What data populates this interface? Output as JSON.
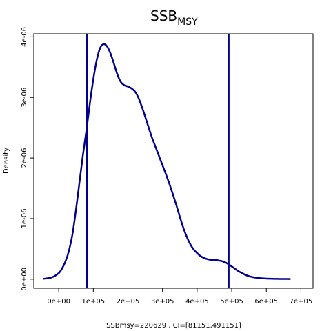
{
  "chart_data": {
    "type": "line",
    "title": "SSB",
    "title_subscript": "MSY",
    "xlabel": "SSBmsy=220629 , CI=[81151,491151]",
    "ylabel": "Density",
    "xlim": [
      -72000,
      735000
    ],
    "ylim": [
      -1.5e-07,
      4.05e-06
    ],
    "x_ticks": [
      0,
      100000,
      200000,
      300000,
      400000,
      500000,
      600000,
      700000
    ],
    "x_tick_labels": [
      "0e+00",
      "1e+05",
      "2e+05",
      "3e+05",
      "4e+05",
      "5e+05",
      "6e+05",
      "7e+05"
    ],
    "y_ticks": [
      0,
      1e-06,
      2e-06,
      3e-06,
      4e-06
    ],
    "y_tick_labels": [
      "0e+00",
      "1e-06",
      "2e-06",
      "3e-06",
      "4e-06"
    ],
    "line_color": "#00008B",
    "series": [
      {
        "x": [
          -45000,
          -20000,
          0,
          10000,
          20000,
          30000,
          40000,
          50000,
          60000,
          70000,
          80000,
          90000,
          100000,
          110000,
          120000,
          130000,
          140000,
          150000,
          160000,
          170000,
          180000,
          190000,
          200000,
          210000,
          220000,
          230000,
          240000,
          250000,
          260000,
          270000,
          280000,
          290000,
          300000,
          310000,
          320000,
          330000,
          340000,
          350000,
          360000,
          370000,
          380000,
          390000,
          400000,
          410000,
          420000,
          430000,
          440000,
          450000,
          460000,
          470000,
          480000,
          490000,
          500000,
          510000,
          520000,
          530000,
          540000,
          550000,
          560000,
          570000,
          580000,
          590000,
          600000,
          610000,
          620000,
          630000,
          640000,
          650000,
          660000,
          670000
        ],
        "y": [
          5e-09,
          3e-08,
          1e-07,
          1.8e-07,
          3e-07,
          4.8e-07,
          7.5e-07,
          1.15e-06,
          1.6e-06,
          2.05e-06,
          2.45e-06,
          2.9e-06,
          3.3e-06,
          3.62e-06,
          3.82e-06,
          3.88e-06,
          3.84e-06,
          3.72e-06,
          3.55e-06,
          3.37e-06,
          3.25e-06,
          3.2e-06,
          3.18e-06,
          3.15e-06,
          3.1e-06,
          3e-06,
          2.85e-06,
          2.68e-06,
          2.5e-06,
          2.33e-06,
          2.18e-06,
          2.03e-06,
          1.88e-06,
          1.73e-06,
          1.57e-06,
          1.4e-06,
          1.22e-06,
          1.03e-06,
          8.5e-07,
          7e-07,
          5.8e-07,
          4.9e-07,
          4.3e-07,
          3.8e-07,
          3.5e-07,
          3.3e-07,
          3.2e-07,
          3.2e-07,
          3.1e-07,
          3e-07,
          2.8e-07,
          2.5e-07,
          2.1e-07,
          1.7e-07,
          1.3e-07,
          1e-07,
          7e-08,
          5e-08,
          3.5e-08,
          2.5e-08,
          1.8e-08,
          1.3e-08,
          1e-08,
          8e-09,
          6e-09,
          5e-09,
          4e-09,
          4e-09,
          3e-09,
          3e-09
        ]
      }
    ],
    "vlines": [
      81151,
      491151
    ]
  }
}
